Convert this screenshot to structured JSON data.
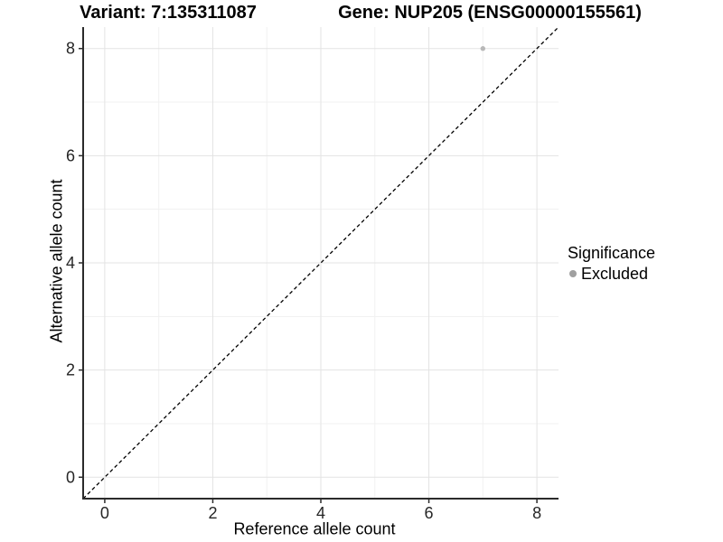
{
  "titles": {
    "variant": "Variant: 7:135311087",
    "gene": "Gene: NUP205 (ENSG00000155561)"
  },
  "axes": {
    "x_label": "Reference allele count",
    "y_label": "Alternative allele count"
  },
  "legend": {
    "title": "Significance",
    "items": [
      {
        "label": "Excluded",
        "color": "#a0a0a0"
      }
    ]
  },
  "colors": {
    "point": "#b8b8b8",
    "legend_dot": "#a0a0a0",
    "grid_major": "#e3e3e3",
    "grid_minor": "#f1f1f1",
    "axis_line": "#2b2b2b",
    "tick_text": "#262626",
    "identity_line": "#000000"
  },
  "chart_data": {
    "type": "scatter",
    "title": "Variant: 7:135311087 | Gene: NUP205 (ENSG00000155561)",
    "xlabel": "Reference allele count",
    "ylabel": "Alternative allele count",
    "xlim": [
      -0.4,
      8.4
    ],
    "ylim": [
      -0.4,
      8.4
    ],
    "x_ticks": [
      0,
      2,
      4,
      6,
      8
    ],
    "y_ticks": [
      0,
      2,
      4,
      6,
      8
    ],
    "x_minor_ticks": [
      1,
      3,
      5,
      7
    ],
    "y_minor_ticks": [
      1,
      3,
      5,
      7
    ],
    "grid": true,
    "legend_position": "right",
    "series": [
      {
        "name": "Excluded",
        "color": "#b8b8b8",
        "points": [
          {
            "x": 7,
            "y": 8
          }
        ]
      }
    ],
    "identity_line": {
      "style": "dashed",
      "equation": "y = x",
      "from": -0.4,
      "to": 8.4
    }
  }
}
